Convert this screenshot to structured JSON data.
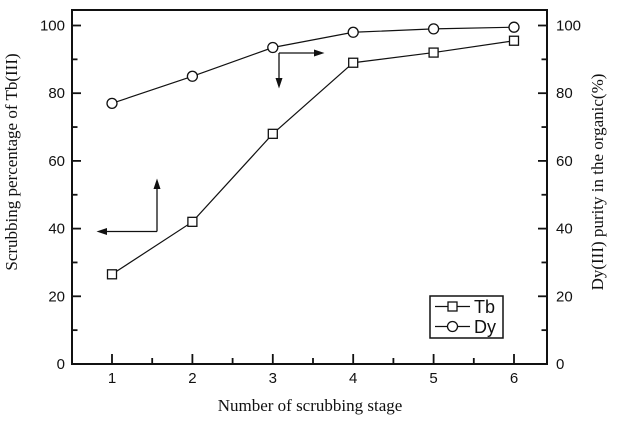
{
  "chart_data": {
    "type": "line",
    "title": "",
    "xlabel": "Number of scrubbing stage",
    "ylabel_left": "Scrubbing percentage of Tb(III)",
    "ylabel_right": "Dy(III) purity in the organic(%)",
    "x": [
      1,
      2,
      3,
      4,
      5,
      6
    ],
    "series": [
      {
        "name": "Tb",
        "axis": "left",
        "marker": "open-square",
        "color": "#111111",
        "values": [
          26.5,
          42,
          68,
          89,
          92,
          95.5
        ]
      },
      {
        "name": "Dy",
        "axis": "right",
        "marker": "open-circle",
        "color": "#111111",
        "values": [
          77,
          85,
          93.5,
          98,
          99,
          99.5
        ]
      }
    ],
    "x_major_ticks": [
      1,
      2,
      3,
      4,
      5,
      6
    ],
    "x_minor_ticks": [
      1.5,
      2.5,
      3.5,
      4.5,
      5.5
    ],
    "y_major_ticks": [
      0,
      20,
      40,
      60,
      80,
      100
    ],
    "y_minor_ticks": [
      10,
      30,
      50,
      70,
      90
    ],
    "xlim": [
      0.5,
      6.5
    ],
    "ylim": [
      0,
      105
    ],
    "grid": false,
    "legend_position": "bottom-right",
    "annotations": [
      {
        "name": "left-axis-pointer",
        "meaning": "Tb curve reads on left axis",
        "shape": "bent double-headed arrow pointing up and left"
      },
      {
        "name": "right-axis-pointer",
        "meaning": "Dy curve reads on right axis",
        "shape": "bent double-headed arrow pointing down and right"
      }
    ],
    "colors": {
      "axes": "#111111",
      "curves": "#111111",
      "marker_fill": "#ffffff",
      "background": "#ffffff"
    }
  }
}
